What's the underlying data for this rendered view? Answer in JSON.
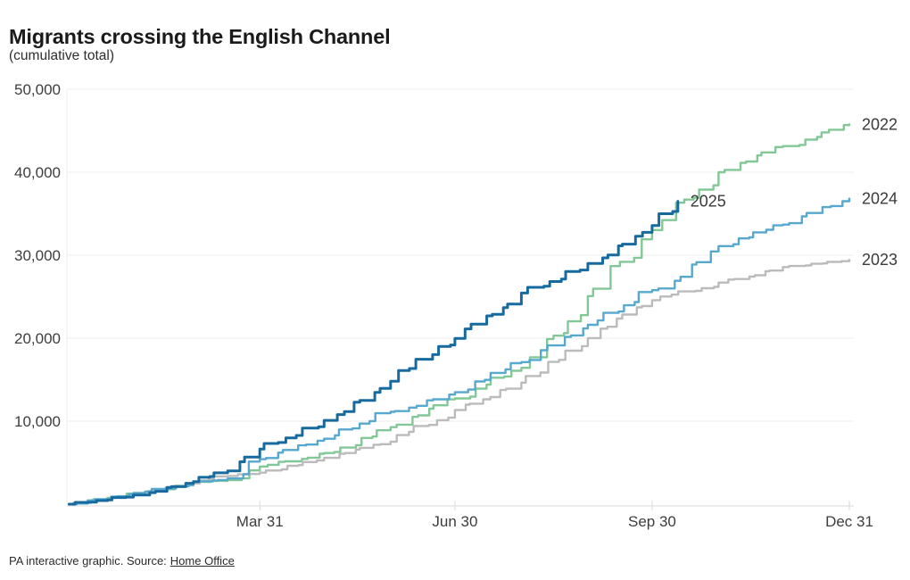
{
  "footer": {
    "credit": "PA interactive graphic. Source:",
    "source_link": "Home Office"
  },
  "chart_data": {
    "type": "line",
    "title": "Migrants crossing the English Channel",
    "subtitle": "(cumulative total)",
    "xlabel": "",
    "ylabel": "",
    "grid": "horizontal",
    "legend_position": "line-end",
    "colors": {
      "grid": "#ececec",
      "axis": "#d9d9d9",
      "tick_text": "#3d3d3d",
      "title_text": "#1a1a1a"
    },
    "x_axis": {
      "unit": "day-of-year",
      "range": [
        1,
        365
      ],
      "ticks": [
        {
          "label": "Mar 31",
          "day": 90
        },
        {
          "label": "Jun 30",
          "day": 181
        },
        {
          "label": "Sep 30",
          "day": 273
        },
        {
          "label": "Dec 31",
          "day": 365
        }
      ]
    },
    "y_axis": {
      "range": [
        0,
        50000
      ],
      "ticks": [
        {
          "label": "10,000",
          "value": 10000
        },
        {
          "label": "20,000",
          "value": 20000
        },
        {
          "label": "30,000",
          "value": 30000
        },
        {
          "label": "40,000",
          "value": 40000
        },
        {
          "label": "50,000",
          "value": 50000
        }
      ]
    },
    "series": [
      {
        "name": "2022",
        "label": "2022",
        "color": "#82C896",
        "width": 2.4,
        "points": [
          [
            1,
            0
          ],
          [
            31,
            1341
          ],
          [
            59,
            2656
          ],
          [
            75,
            2900
          ],
          [
            90,
            4540
          ],
          [
            120,
            6159
          ],
          [
            151,
            9281
          ],
          [
            181,
            12747
          ],
          [
            212,
            16430
          ],
          [
            227,
            20300
          ],
          [
            243,
            25072
          ],
          [
            258,
            29200
          ],
          [
            273,
            33033
          ],
          [
            288,
            36700
          ],
          [
            304,
            40004
          ],
          [
            334,
            43148
          ],
          [
            352,
            44800
          ],
          [
            365,
            45774
          ]
        ]
      },
      {
        "name": "2023",
        "label": "2023",
        "color": "#BBBBBB",
        "width": 2.4,
        "points": [
          [
            1,
            0
          ],
          [
            31,
            1180
          ],
          [
            59,
            2502
          ],
          [
            75,
            3400
          ],
          [
            90,
            3793
          ],
          [
            120,
            5583
          ],
          [
            151,
            7523
          ],
          [
            181,
            11347
          ],
          [
            212,
            14646
          ],
          [
            243,
            20015
          ],
          [
            273,
            24577
          ],
          [
            304,
            26699
          ],
          [
            334,
            28565
          ],
          [
            365,
            29437
          ]
        ]
      },
      {
        "name": "2024",
        "label": "2024",
        "color": "#56A8CE",
        "width": 2.4,
        "points": [
          [
            1,
            0
          ],
          [
            31,
            1335
          ],
          [
            59,
            2713
          ],
          [
            75,
            3100
          ],
          [
            90,
            5424
          ],
          [
            120,
            7884
          ],
          [
            151,
            11130
          ],
          [
            181,
            13489
          ],
          [
            212,
            17120
          ],
          [
            243,
            21615
          ],
          [
            273,
            25790
          ],
          [
            304,
            31094
          ],
          [
            334,
            33684
          ],
          [
            365,
            36816
          ]
        ]
      },
      {
        "name": "2025",
        "label": "2025",
        "color": "#176A9E",
        "width": 3,
        "points": [
          [
            1,
            0
          ],
          [
            31,
            1098
          ],
          [
            59,
            2716
          ],
          [
            75,
            4000
          ],
          [
            90,
            6642
          ],
          [
            120,
            10100
          ],
          [
            151,
            14811
          ],
          [
            181,
            19982
          ],
          [
            212,
            25436
          ],
          [
            243,
            29003
          ],
          [
            273,
            33573
          ],
          [
            285,
            36500
          ]
        ]
      }
    ]
  }
}
